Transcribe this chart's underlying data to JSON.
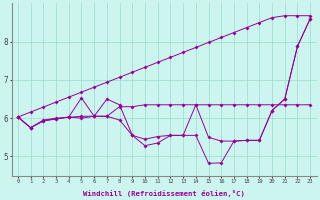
{
  "xlabel": "Windchill (Refroidissement éolien,°C)",
  "background_color": "#cdf5f0",
  "line_color": "#990099",
  "xlim": [
    -0.5,
    23.5
  ],
  "ylim": [
    4.5,
    9.0
  ],
  "xticks": [
    0,
    1,
    2,
    3,
    4,
    5,
    6,
    7,
    8,
    9,
    10,
    11,
    12,
    13,
    14,
    15,
    16,
    17,
    18,
    19,
    20,
    21,
    22,
    23
  ],
  "yticks": [
    5,
    6,
    7,
    8
  ],
  "grid_color": "#99ddcc",
  "series": [
    [
      6.03,
      5.75,
      5.93,
      5.98,
      6.03,
      6.53,
      6.05,
      6.5,
      6.35,
      5.55,
      5.28,
      5.35,
      5.55,
      5.55,
      6.35,
      5.5,
      5.4,
      5.4,
      5.42,
      5.42,
      6.2,
      6.5,
      7.88,
      8.6
    ],
    [
      6.03,
      5.75,
      5.93,
      5.98,
      6.03,
      6.0,
      6.05,
      6.05,
      5.95,
      5.55,
      5.45,
      5.52,
      5.55,
      5.55,
      5.55,
      4.82,
      4.83,
      5.4,
      5.42,
      5.42,
      6.2,
      6.5,
      7.88,
      8.6
    ],
    [
      6.03,
      5.75,
      5.95,
      6.0,
      6.02,
      6.05,
      6.05,
      6.05,
      6.3,
      6.3,
      6.35,
      6.35,
      6.35,
      6.35,
      6.35,
      6.35,
      6.35,
      6.35,
      6.35,
      6.35,
      6.35,
      6.35,
      6.35,
      6.35
    ],
    [
      6.03,
      6.16,
      6.29,
      6.42,
      6.55,
      6.68,
      6.81,
      6.94,
      7.07,
      7.2,
      7.33,
      7.46,
      7.59,
      7.72,
      7.85,
      7.98,
      8.11,
      8.24,
      8.37,
      8.5,
      8.63,
      8.68,
      8.68,
      8.68
    ]
  ]
}
